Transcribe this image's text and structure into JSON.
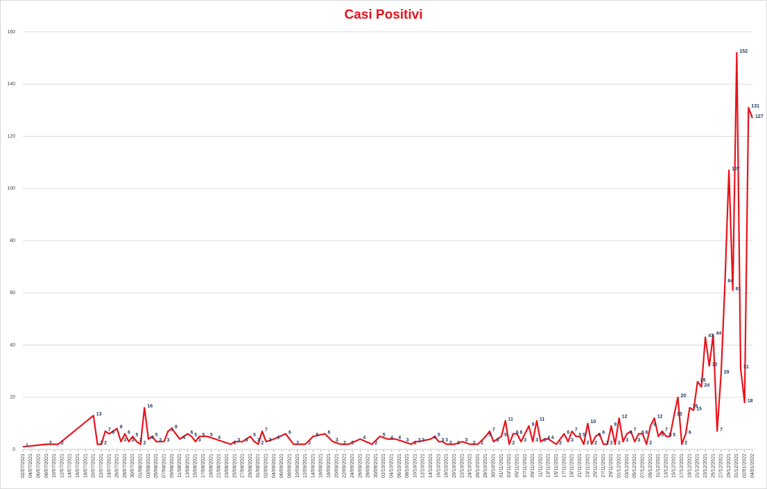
{
  "chart_data": {
    "type": "line",
    "title": "Casi Positivi",
    "color": "#e8121b",
    "label_color": "#1f3864",
    "grid": true,
    "ylim": [
      0,
      160
    ],
    "yticks": [
      0,
      20,
      40,
      60,
      80,
      100,
      120,
      140,
      160
    ],
    "xlim": [
      "02/07/2021",
      "04/01/2022"
    ],
    "xticks": [
      "02/07/2021",
      "04/07/2021",
      "06/07/2021",
      "08/07/2021",
      "10/07/2021",
      "12/07/2021",
      "14/07/2021",
      "16/07/2021",
      "18/07/2021",
      "20/07/2021",
      "22/07/2021",
      "24/07/2021",
      "26/07/2021",
      "28/07/2021",
      "30/07/2021",
      "01/08/2021",
      "03/08/2021",
      "05/08/2021",
      "07/08/2021",
      "09/08/2021",
      "11/08/2021",
      "13/08/2021",
      "15/08/2021",
      "17/08/2021",
      "19/08/2021",
      "21/08/2021",
      "23/08/2021",
      "25/08/2021",
      "27/08/2021",
      "29/08/2021",
      "31/08/2021",
      "02/09/2021",
      "04/09/2021",
      "06/09/2021",
      "08/09/2021",
      "10/09/2021",
      "12/09/2021",
      "14/09/2021",
      "16/09/2021",
      "18/09/2021",
      "20/09/2021",
      "22/09/2021",
      "24/09/2021",
      "26/09/2021",
      "28/09/2021",
      "30/09/2021",
      "02/10/2021",
      "04/10/2021",
      "06/10/2021",
      "08/10/2021",
      "10/10/2021",
      "12/10/2021",
      "14/10/2021",
      "16/10/2021",
      "18/10/2021",
      "20/10/2021",
      "22/10/2021",
      "24/10/2021",
      "26/10/2021",
      "28/10/2021",
      "30/10/2021",
      "01/11/2021",
      "03/11/2021",
      "05/11/2021",
      "07/11/2021",
      "09/11/2021",
      "11/11/2021",
      "13/11/2021",
      "15/11/2021",
      "17/11/2021",
      "19/11/2021",
      "21/11/2021",
      "23/11/2021",
      "25/11/2021",
      "27/11/2021",
      "29/11/2021",
      "01/12/2021",
      "03/12/2021",
      "05/12/2021",
      "07/12/2021",
      "09/12/2021",
      "11/12/2021",
      "13/12/2021",
      "15/12/2021",
      "17/12/2021",
      "19/12/2021",
      "21/12/2021",
      "23/12/2021",
      "25/12/2021",
      "27/12/2021",
      "29/12/2021",
      "31/12/2021",
      "02/01/2022",
      "04/01/2022"
    ],
    "x": [
      "02/07/2021",
      "08/07/2021",
      "11/07/2021",
      "20/07/2021",
      "21/07/2021",
      "22/07/2021",
      "23/07/2021",
      "24/07/2021",
      "26/07/2021",
      "27/07/2021",
      "28/07/2021",
      "29/07/2021",
      "30/07/2021",
      "31/07/2021",
      "01/08/2021",
      "02/08/2021",
      "03/08/2021",
      "04/08/2021",
      "05/08/2021",
      "07/08/2021",
      "08/08/2021",
      "09/08/2021",
      "11/08/2021",
      "13/08/2021",
      "14/08/2021",
      "15/08/2021",
      "16/08/2021",
      "18/08/2021",
      "20/08/2021",
      "24/08/2021",
      "25/08/2021",
      "27/08/2021",
      "29/08/2021",
      "30/08/2021",
      "31/08/2021",
      "01/09/2021",
      "02/09/2021",
      "04/09/2021",
      "07/09/2021",
      "09/09/2021",
      "12/09/2021",
      "14/09/2021",
      "17/09/2021",
      "19/09/2021",
      "21/09/2021",
      "23/09/2021",
      "26/09/2021",
      "29/09/2021",
      "01/10/2021",
      "03/10/2021",
      "05/10/2021",
      "07/10/2021",
      "09/10/2021",
      "10/10/2021",
      "11/10/2021",
      "14/10/2021",
      "15/10/2021",
      "16/10/2021",
      "17/10/2021",
      "18/10/2021",
      "20/10/2021",
      "22/10/2021",
      "24/10/2021",
      "26/10/2021",
      "28/10/2021",
      "29/10/2021",
      "30/10/2021",
      "01/11/2021",
      "02/11/2021",
      "03/11/2021",
      "04/11/2021",
      "05/11/2021",
      "06/11/2021",
      "08/11/2021",
      "09/11/2021",
      "10/11/2021",
      "11/11/2021",
      "12/11/2021",
      "13/11/2021",
      "15/11/2021",
      "17/11/2021",
      "18/11/2021",
      "19/11/2021",
      "20/11/2021",
      "21/11/2021",
      "22/11/2021",
      "23/11/2021",
      "24/11/2021",
      "25/11/2021",
      "26/11/2021",
      "27/11/2021",
      "28/11/2021",
      "29/11/2021",
      "30/11/2021",
      "01/12/2021",
      "02/12/2021",
      "03/12/2021",
      "04/12/2021",
      "05/12/2021",
      "06/12/2021",
      "07/12/2021",
      "08/12/2021",
      "09/12/2021",
      "10/12/2021",
      "11/12/2021",
      "12/12/2021",
      "13/12/2021",
      "14/12/2021",
      "15/12/2021",
      "16/12/2021",
      "17/12/2021",
      "18/12/2021",
      "19/12/2021",
      "20/12/2021",
      "21/12/2021",
      "22/12/2021",
      "23/12/2021",
      "24/12/2021",
      "25/12/2021",
      "26/12/2021",
      "27/12/2021",
      "28/12/2021",
      "29/12/2021",
      "30/12/2021",
      "31/12/2021",
      "01/01/2022",
      "02/01/2022",
      "03/01/2022",
      "04/01/2022"
    ],
    "values": [
      1,
      2,
      2,
      13,
      2,
      2,
      7,
      6,
      8,
      3,
      6,
      3,
      5,
      3,
      2,
      16,
      4,
      5,
      3,
      3,
      7,
      8,
      4,
      6,
      5,
      3,
      5,
      5,
      4,
      2,
      3,
      3,
      5,
      3,
      2,
      7,
      3,
      4,
      6,
      2,
      2,
      5,
      6,
      3,
      2,
      2,
      4,
      2,
      5,
      4,
      4,
      3,
      2,
      3,
      3,
      4,
      5,
      3,
      3,
      2,
      2,
      3,
      2,
      2,
      5,
      7,
      3,
      5,
      11,
      2,
      6,
      6,
      3,
      9,
      3,
      11,
      3,
      4,
      4,
      2,
      6,
      3,
      7,
      5,
      5,
      2,
      10,
      2,
      5,
      6,
      2,
      2,
      9,
      2,
      12,
      3,
      6,
      7,
      3,
      6,
      6,
      2,
      9,
      12,
      5,
      7,
      5,
      5,
      13,
      20,
      2,
      6,
      16,
      15,
      26,
      24,
      43,
      32,
      44,
      7,
      29,
      64,
      107,
      61,
      152,
      31,
      18,
      131,
      127
    ]
  }
}
